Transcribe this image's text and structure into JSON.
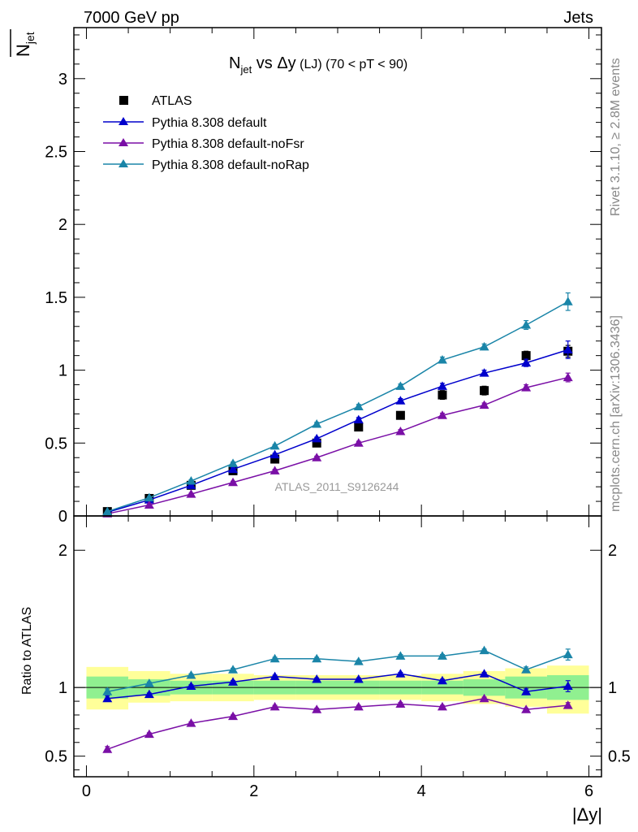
{
  "header": {
    "left": "7000 GeV pp",
    "right": "Jets"
  },
  "side_labels": {
    "rivet": "Rivet 3.1.10, ≥ 2.8M events",
    "mcplots": "mcplots.cern.ch [arXiv:1306.3436]"
  },
  "chart_data": [
    {
      "type": "scatter",
      "panel": "main",
      "title": "N_jet vs Δy (LJ) (70 < pT <  90)",
      "title_parts": {
        "n": "N",
        "jet": "jet",
        "vs": " vs ",
        "dy": "Δy",
        "lj": " (LJ)",
        "cut": " (70 < pT <  90)"
      },
      "ylabel": "N_jet",
      "ylabel_parts": {
        "n": "N",
        "jet": "jet"
      },
      "xlabel": "|Δy|",
      "xlim": [
        -0.15,
        6.15
      ],
      "ylim": [
        0,
        3.35
      ],
      "x_ticks": [
        "0",
        "2",
        "4",
        "6"
      ],
      "y_ticks": [
        "0",
        "0.5",
        "1",
        "1.5",
        "2",
        "2.5",
        "3"
      ],
      "annotation": "ATLAS_2011_S9126244",
      "legend_position": "top-left",
      "x": [
        0.25,
        0.75,
        1.25,
        1.75,
        2.25,
        2.75,
        3.25,
        3.75,
        4.25,
        4.75,
        5.25,
        5.75
      ],
      "series": [
        {
          "name": "ATLAS",
          "color": "#000000",
          "marker": "square",
          "values": [
            0.03,
            0.12,
            0.21,
            0.31,
            0.39,
            0.5,
            0.61,
            0.69,
            0.83,
            0.86,
            1.1,
            1.13
          ],
          "errors": [
            0.005,
            0.01,
            0.01,
            0.015,
            0.02,
            0.02,
            0.02,
            0.02,
            0.03,
            0.03,
            0.03,
            0.04
          ]
        },
        {
          "name": "Pythia 8.308 default",
          "color": "#0000cc",
          "marker": "triangle",
          "values": [
            0.025,
            0.11,
            0.21,
            0.32,
            0.42,
            0.53,
            0.66,
            0.79,
            0.89,
            0.98,
            1.05,
            1.14
          ],
          "errors": [
            0.003,
            0.005,
            0.008,
            0.01,
            0.01,
            0.01,
            0.015,
            0.015,
            0.02,
            0.02,
            0.025,
            0.06
          ]
        },
        {
          "name": "Pythia 8.308 default-noFsr",
          "color": "#7a0fa6",
          "marker": "triangle",
          "values": [
            0.015,
            0.075,
            0.15,
            0.23,
            0.31,
            0.4,
            0.5,
            0.58,
            0.69,
            0.76,
            0.88,
            0.95
          ],
          "errors": [
            0.002,
            0.004,
            0.006,
            0.008,
            0.01,
            0.01,
            0.012,
            0.012,
            0.015,
            0.015,
            0.02,
            0.03
          ]
        },
        {
          "name": "Pythia 8.308 default-noRap",
          "color": "#1a85a8",
          "marker": "triangle",
          "values": [
            0.03,
            0.125,
            0.24,
            0.36,
            0.48,
            0.63,
            0.75,
            0.89,
            1.07,
            1.16,
            1.31,
            1.47
          ],
          "errors": [
            0.003,
            0.005,
            0.008,
            0.01,
            0.01,
            0.012,
            0.015,
            0.015,
            0.02,
            0.02,
            0.03,
            0.06
          ]
        }
      ]
    },
    {
      "type": "scatter",
      "panel": "ratio",
      "ylabel": "Ratio to ATLAS",
      "xlim": [
        -0.15,
        6.15
      ],
      "ylim": [
        0.35,
        2.25
      ],
      "y_ticks": [
        "0.5",
        "1",
        "2"
      ],
      "x": [
        0.25,
        0.75,
        1.25,
        1.75,
        2.25,
        2.75,
        3.25,
        3.75,
        4.25,
        4.75,
        5.25,
        5.75
      ],
      "bands": {
        "edges": [
          0,
          0.5,
          1.0,
          1.5,
          2.0,
          2.5,
          3.0,
          3.5,
          4.0,
          4.5,
          5.0,
          5.5,
          6.0
        ],
        "stat_color": "#90f090",
        "total_color": "#ffff99",
        "stat_lo": [
          0.92,
          0.94,
          0.95,
          0.95,
          0.95,
          0.95,
          0.95,
          0.95,
          0.95,
          0.94,
          0.92,
          0.91
        ],
        "stat_hi": [
          1.08,
          1.06,
          1.05,
          1.05,
          1.05,
          1.05,
          1.05,
          1.05,
          1.05,
          1.06,
          1.08,
          1.09
        ],
        "total_lo": [
          0.84,
          0.89,
          0.9,
          0.9,
          0.91,
          0.91,
          0.91,
          0.91,
          0.9,
          0.88,
          0.86,
          0.81
        ],
        "total_hi": [
          1.15,
          1.12,
          1.1,
          1.1,
          1.09,
          1.09,
          1.09,
          1.09,
          1.1,
          1.12,
          1.14,
          1.16
        ]
      },
      "series": [
        {
          "name": "Pythia 8.308 default",
          "color": "#0000cc",
          "values": [
            0.92,
            0.95,
            1.01,
            1.04,
            1.08,
            1.06,
            1.06,
            1.1,
            1.05,
            1.1,
            0.97,
            1.01
          ],
          "errors": [
            0.02,
            0.01,
            0.01,
            0.01,
            0.01,
            0.01,
            0.01,
            0.01,
            0.01,
            0.01,
            0.02,
            0.04
          ]
        },
        {
          "name": "Pythia 8.308 default-noFsr",
          "color": "#7a0fa6",
          "values": [
            0.55,
            0.66,
            0.74,
            0.79,
            0.86,
            0.84,
            0.86,
            0.88,
            0.86,
            0.92,
            0.84,
            0.87
          ],
          "errors": [
            0.02,
            0.01,
            0.01,
            0.01,
            0.01,
            0.01,
            0.01,
            0.01,
            0.01,
            0.01,
            0.01,
            0.02
          ]
        },
        {
          "name": "Pythia 8.308 default-noRap",
          "color": "#1a85a8",
          "values": [
            0.97,
            1.03,
            1.09,
            1.13,
            1.21,
            1.21,
            1.19,
            1.23,
            1.23,
            1.27,
            1.13,
            1.24
          ],
          "errors": [
            0.02,
            0.01,
            0.01,
            0.01,
            0.01,
            0.01,
            0.01,
            0.01,
            0.01,
            0.01,
            0.02,
            0.04
          ]
        }
      ]
    }
  ]
}
